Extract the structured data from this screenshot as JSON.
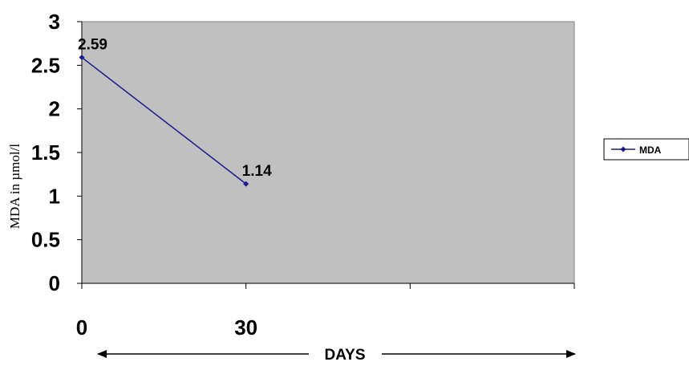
{
  "chart_data": {
    "type": "line",
    "x": [
      0,
      30
    ],
    "series": [
      {
        "name": "MDA",
        "values": [
          2.59,
          1.14
        ],
        "data_labels": [
          "2.59",
          "1.14"
        ]
      }
    ],
    "xlabel": "DAYS",
    "ylabel": "MDA in µmol/l",
    "ylim": [
      0,
      3
    ],
    "yticks": [
      "0",
      "0.5",
      "1",
      "1.5",
      "2",
      "2.5",
      "3"
    ],
    "xticks": [
      "0",
      "30"
    ],
    "legend_position": "right",
    "grid": false,
    "colors": {
      "plot_background": "#c0c0c0",
      "series": "#1a1a8c",
      "axis": "#000000"
    }
  }
}
